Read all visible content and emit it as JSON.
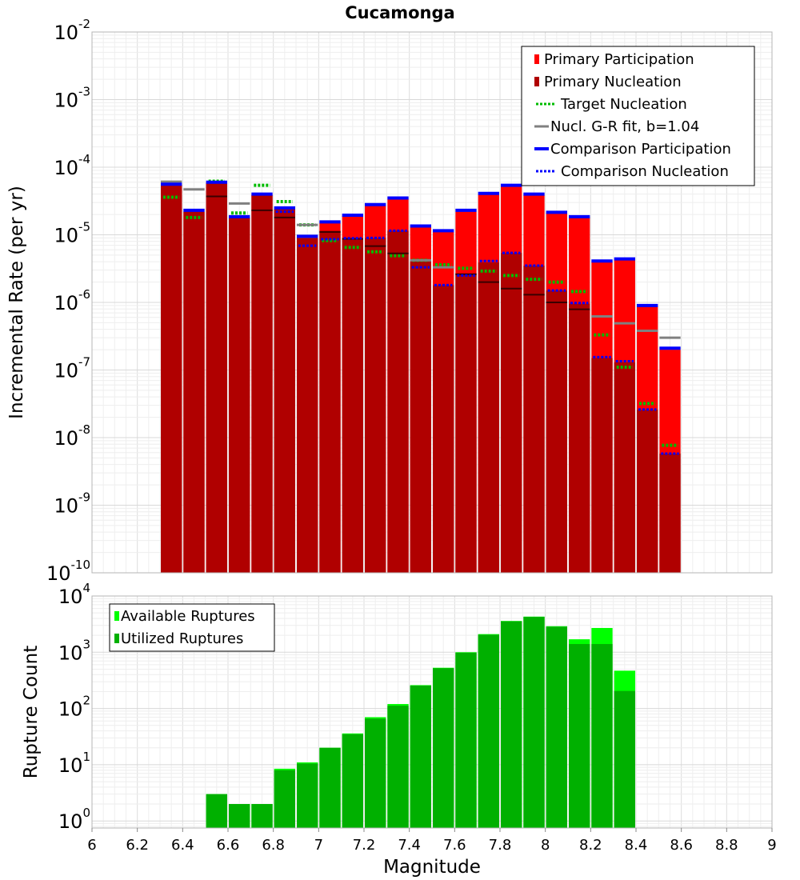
{
  "chart_data": [
    {
      "type": "bar",
      "title": "Cucamonga",
      "xlabel": "",
      "ylabel": "Incremental Rate (per yr)",
      "y_scale": "log",
      "ylim": [
        1e-10,
        0.01
      ],
      "xlim": [
        6,
        9
      ],
      "y_ticks": [
        {
          "base": "10",
          "exp": "-10"
        },
        {
          "base": "10",
          "exp": "-9"
        },
        {
          "base": "10",
          "exp": "-8"
        },
        {
          "base": "10",
          "exp": "-7"
        },
        {
          "base": "10",
          "exp": "-6"
        },
        {
          "base": "10",
          "exp": "-5"
        },
        {
          "base": "10",
          "exp": "-4"
        },
        {
          "base": "10",
          "exp": "-3"
        },
        {
          "base": "10",
          "exp": "-2"
        }
      ],
      "grid": true,
      "legend_position": "top-right",
      "legend": [
        {
          "label": "Primary Participation",
          "color": "#ff0000",
          "style": "bar"
        },
        {
          "label": "Primary Nucleation",
          "color": "#b00000",
          "style": "bar"
        },
        {
          "label": "Target Nucleation",
          "color": "#00bb00",
          "style": "dotted"
        },
        {
          "label": "Nucl. G-R fit, b=1.04",
          "color": "#808080",
          "style": "solid"
        },
        {
          "label": "Comparison Participation",
          "color": "#0000ff",
          "style": "thick"
        },
        {
          "label": "Comparison Nucleation",
          "color": "#0000ff",
          "style": "dotted"
        }
      ],
      "bin_width": 0.1,
      "x": [
        6.35,
        6.45,
        6.55,
        6.65,
        6.75,
        6.85,
        6.95,
        7.05,
        7.15,
        7.25,
        7.35,
        7.45,
        7.55,
        7.65,
        7.75,
        7.85,
        7.95,
        8.05,
        8.15,
        8.25,
        8.35,
        8.45,
        8.55
      ],
      "series": [
        {
          "name": "Primary Participation",
          "values": [
            5.5e-05,
            2.2e-05,
            5.9e-05,
            1.8e-05,
            3.9e-05,
            2.4e-05,
            9e-06,
            1.5e-05,
            1.9e-05,
            2.7e-05,
            3.4e-05,
            1.3e-05,
            1.1e-05,
            2.2e-05,
            4e-05,
            5.3e-05,
            3.9e-05,
            2.1e-05,
            1.8e-05,
            4e-06,
            4.3e-06,
            8.8e-07,
            2e-07
          ]
        },
        {
          "name": "Primary Nucleation",
          "values": [
            5.5e-05,
            2.2e-05,
            5.9e-05,
            1.8e-05,
            3.9e-05,
            2.4e-05,
            9e-06,
            1.15e-05,
            8.9e-06,
            9e-06,
            1.15e-05,
            4.1e-06,
            1.8e-06,
            2.7e-06,
            3.9e-06,
            5.4e-06,
            3.5e-06,
            1.5e-06,
            9.6e-07,
            1.5e-07,
            1.3e-07,
            2.6e-08,
            5.8e-09
          ]
        },
        {
          "name": "Target Nucleation",
          "values": [
            3.6e-05,
            1.8e-05,
            6.2e-05,
            2.1e-05,
            5.4e-05,
            3.1e-05,
            1.4e-05,
            8.2e-06,
            6.5e-06,
            5.6e-06,
            4.9e-06,
            4.2e-06,
            3.6e-06,
            3.2e-06,
            2.9e-06,
            2.5e-06,
            2.2e-06,
            2e-06,
            1.45e-06,
            3.3e-07,
            1.1e-07,
            3.2e-08,
            7.7e-09
          ]
        },
        {
          "name": "Nucl. G-R fit, b=1.04",
          "values": [
            6.1e-05,
            4.7e-05,
            3.7e-05,
            2.9e-05,
            2.3e-05,
            1.8e-05,
            1.4e-05,
            1.1e-05,
            8.7e-06,
            6.8e-06,
            5.3e-06,
            4.2e-06,
            3.3e-06,
            2.6e-06,
            2e-06,
            1.6e-06,
            1.3e-06,
            1e-06,
            7.9e-07,
            6.2e-07,
            4.9e-07,
            3.8e-07,
            3e-07
          ]
        },
        {
          "name": "Comparison Participation",
          "values": [
            5.6e-05,
            2.3e-05,
            6e-05,
            1.85e-05,
            4e-05,
            2.5e-05,
            9.5e-06,
            1.55e-05,
            1.95e-05,
            2.8e-05,
            3.5e-05,
            1.35e-05,
            1.15e-05,
            2.3e-05,
            4.1e-05,
            5.4e-05,
            4e-05,
            2.15e-05,
            1.85e-05,
            4.1e-06,
            4.4e-06,
            9e-07,
            2.1e-07
          ]
        },
        {
          "name": "Comparison Nucleation",
          "values": [
            5.6e-05,
            2.3e-05,
            6e-05,
            1.85e-05,
            4e-05,
            2.2e-05,
            6.9e-06,
            8.6e-06,
            8.9e-06,
            9e-06,
            1.15e-05,
            3.3e-06,
            1.8e-06,
            2.5e-06,
            4.1e-06,
            5.4e-06,
            3.5e-06,
            1.5e-06,
            9.8e-07,
            1.55e-07,
            1.35e-07,
            2.6e-08,
            5.8e-09
          ]
        }
      ]
    },
    {
      "type": "bar",
      "title": "",
      "xlabel": "Magnitude",
      "ylabel": "Rupture Count",
      "y_scale": "log",
      "ylim": [
        0.75,
        10000
      ],
      "xlim": [
        6,
        9
      ],
      "x_ticks": [
        "6",
        "6.2",
        "6.4",
        "6.6",
        "6.8",
        "7",
        "7.2",
        "7.4",
        "7.6",
        "7.8",
        "8",
        "8.2",
        "8.4",
        "8.6",
        "8.8",
        "9"
      ],
      "y_ticks": [
        {
          "base": "10",
          "exp": "0"
        },
        {
          "base": "10",
          "exp": "1"
        },
        {
          "base": "10",
          "exp": "2"
        },
        {
          "base": "10",
          "exp": "3"
        },
        {
          "base": "10",
          "exp": "4"
        }
      ],
      "grid": true,
      "legend_position": "top-left",
      "legend": [
        {
          "label": "Available Ruptures",
          "color": "#00ff00",
          "style": "bar"
        },
        {
          "label": "Utilized Ruptures",
          "color": "#00b000",
          "style": "bar"
        }
      ],
      "bin_width": 0.1,
      "x": [
        6.55,
        6.65,
        6.75,
        6.85,
        6.95,
        7.05,
        7.15,
        7.25,
        7.35,
        7.45,
        7.55,
        7.65,
        7.75,
        7.85,
        7.95,
        8.05,
        8.15,
        8.25,
        8.35
      ],
      "series": [
        {
          "name": "Available Ruptures",
          "values": [
            3,
            2,
            2,
            8.5,
            11,
            20,
            36,
            70,
            120,
            260,
            530,
            1000,
            2100,
            3600,
            4300,
            2900,
            1700,
            2700,
            470
          ]
        },
        {
          "name": "Utilized Ruptures",
          "values": [
            3,
            2,
            2,
            8,
            10.5,
            20,
            35,
            66,
            112,
            255,
            520,
            980,
            2050,
            3550,
            4250,
            2850,
            1400,
            1400,
            205
          ]
        }
      ]
    }
  ]
}
